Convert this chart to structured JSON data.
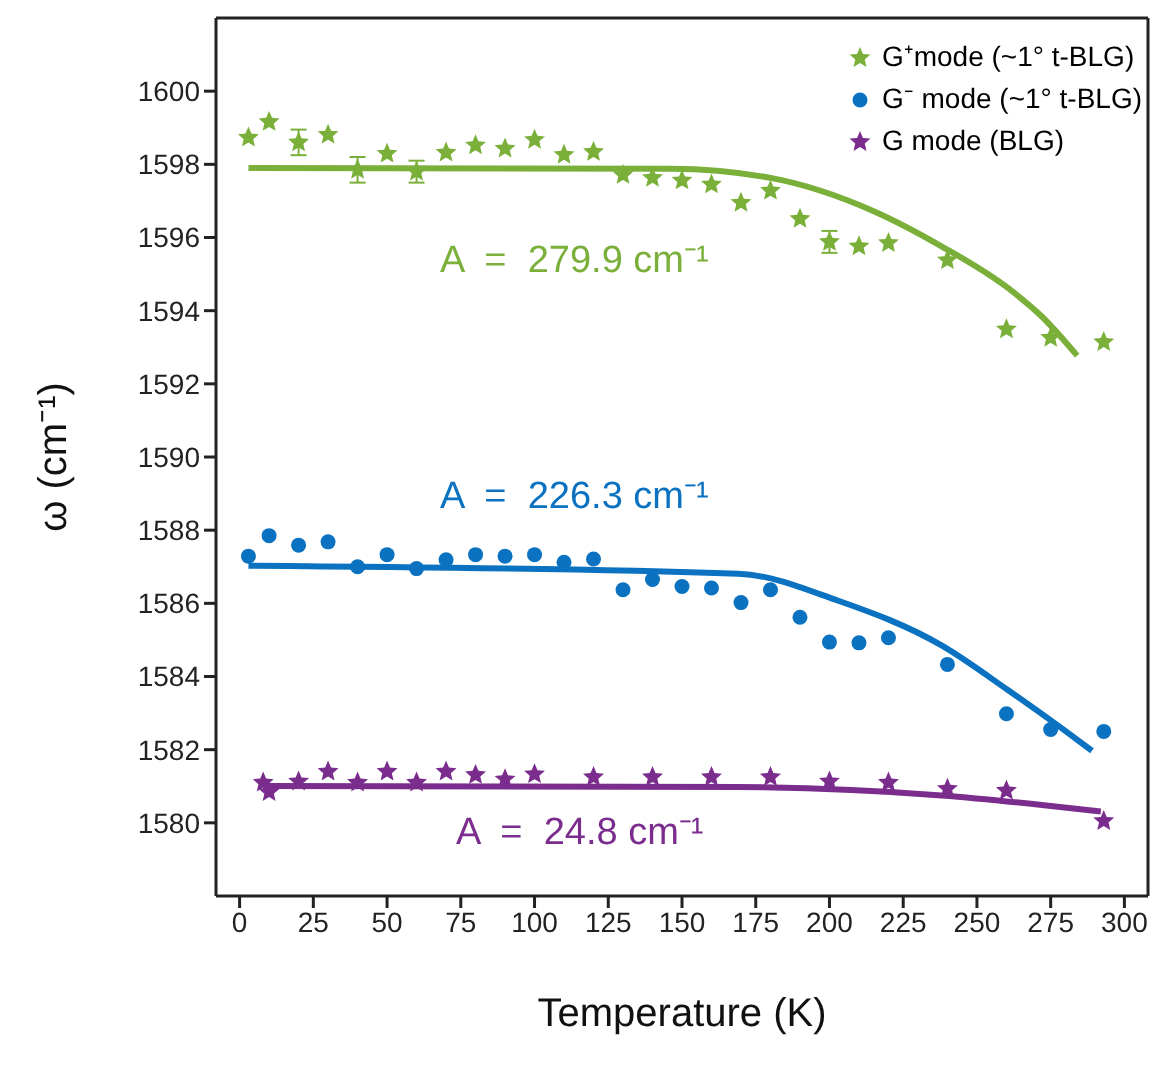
{
  "chart_data": {
    "type": "scatter",
    "xlabel": "Temperature (K)",
    "ylabel": "ω (cm⁻¹)",
    "xlim": [
      -8,
      308
    ],
    "xticks": [
      0,
      25,
      50,
      75,
      100,
      125,
      150,
      175,
      200,
      225,
      250,
      275,
      300
    ],
    "ylim": [
      1578,
      1602
    ],
    "yticks": [
      1580,
      1582,
      1584,
      1586,
      1588,
      1590,
      1592,
      1594,
      1596,
      1598,
      1600
    ],
    "grid": false,
    "legend": "top right",
    "series": [
      {
        "name": "G⁺mode (~1° t-BLG)",
        "marker": "star",
        "color": "#7ab03a",
        "x": [
          3,
          10,
          20,
          30,
          40,
          50,
          60,
          70,
          80,
          90,
          100,
          110,
          120,
          130,
          140,
          150,
          160,
          170,
          180,
          190,
          200,
          210,
          220,
          240,
          260,
          275,
          293
        ],
        "values": [
          1598.73,
          1599.16,
          1598.6,
          1598.81,
          1597.85,
          1598.29,
          1597.8,
          1598.32,
          1598.52,
          1598.43,
          1598.67,
          1598.26,
          1598.34,
          1597.71,
          1597.63,
          1597.56,
          1597.45,
          1596.95,
          1597.28,
          1596.51,
          1595.88,
          1595.76,
          1595.85,
          1595.38,
          1593.49,
          1593.26,
          1593.14
        ],
        "errors": [
          null,
          null,
          0.35,
          null,
          0.35,
          null,
          0.3,
          null,
          null,
          null,
          null,
          null,
          null,
          null,
          null,
          null,
          null,
          null,
          null,
          null,
          0.3,
          null,
          null,
          null,
          null,
          null,
          null
        ]
      },
      {
        "name": "G⁻ mode (~1° t-BLG)",
        "marker": "circle",
        "color": "#0a72c0",
        "x": [
          3,
          10,
          20,
          30,
          40,
          50,
          60,
          70,
          80,
          90,
          100,
          110,
          120,
          130,
          140,
          150,
          160,
          170,
          180,
          190,
          200,
          210,
          220,
          240,
          260,
          275,
          293
        ],
        "values": [
          1587.29,
          1587.85,
          1587.59,
          1587.68,
          1587.0,
          1587.33,
          1586.95,
          1587.19,
          1587.33,
          1587.29,
          1587.33,
          1587.12,
          1587.21,
          1586.37,
          1586.65,
          1586.46,
          1586.42,
          1586.02,
          1586.37,
          1585.62,
          1584.94,
          1584.92,
          1585.06,
          1584.33,
          1582.98,
          1582.55,
          1582.5
        ]
      },
      {
        "name": "G  mode (BLG)",
        "marker": "star",
        "color": "#7b2d8e",
        "x": [
          8,
          10,
          20,
          30,
          40,
          50,
          60,
          70,
          80,
          90,
          100,
          120,
          140,
          160,
          180,
          200,
          220,
          240,
          260,
          293
        ],
        "values": [
          1581.1,
          1580.84,
          1581.13,
          1581.4,
          1581.1,
          1581.4,
          1581.1,
          1581.4,
          1581.31,
          1581.19,
          1581.33,
          1581.25,
          1581.25,
          1581.25,
          1581.25,
          1581.13,
          1581.1,
          1580.93,
          1580.88,
          1580.05
        ]
      },
      {
        "type": "line",
        "marker": "none",
        "color": "#7ab03a",
        "x": [
          3,
          146,
          180,
          215,
          238,
          260.5,
          272,
          284
        ],
        "values": [
          1597.9,
          1597.88,
          1597.63,
          1596.72,
          1595.76,
          1594.62,
          1593.84,
          1592.77
        ]
      },
      {
        "type": "line",
        "marker": "none",
        "color": "#0a72c0",
        "x": [
          3,
          169,
          203,
          238,
          260.5,
          278.8,
          289
        ],
        "values": [
          1587.03,
          1586.81,
          1586.07,
          1584.85,
          1583.63,
          1582.58,
          1581.97
        ]
      },
      {
        "type": "line",
        "marker": "none",
        "color": "#7b2d8e",
        "x": [
          8,
          169,
          238,
          272,
          292
        ],
        "values": [
          1581.01,
          1580.98,
          1580.75,
          1580.49,
          1580.31
        ]
      }
    ],
    "annotations": [
      "A  =  279.9 cm⁻¹",
      "A  =  226.3 cm⁻¹",
      "A  =  24.8 cm⁻¹"
    ]
  }
}
